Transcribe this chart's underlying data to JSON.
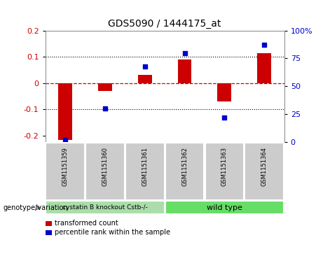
{
  "title": "GDS5090 / 1444175_at",
  "samples": [
    "GSM1151359",
    "GSM1151360",
    "GSM1151361",
    "GSM1151362",
    "GSM1151363",
    "GSM1151364"
  ],
  "bar_values": [
    -0.215,
    -0.03,
    0.03,
    0.09,
    -0.07,
    0.115
  ],
  "dot_values": [
    2,
    30,
    68,
    80,
    22,
    87
  ],
  "bar_color": "#cc0000",
  "dot_color": "#0000cc",
  "ylim_left": [
    -0.225,
    0.2
  ],
  "ylim_right": [
    0,
    100
  ],
  "yticks_left": [
    -0.2,
    -0.1,
    0.0,
    0.1,
    0.2
  ],
  "ytick_labels_left": [
    "-0.2",
    "-0.1",
    "0",
    "0.1",
    "0.2"
  ],
  "yticks_right": [
    0,
    25,
    50,
    75,
    100
  ],
  "ytick_labels_right": [
    "0",
    "25",
    "50",
    "75",
    "100%"
  ],
  "group1_label": "cystatin B knockout Cstb-/-",
  "group2_label": "wild type",
  "group1_color": "#aaddaa",
  "group2_color": "#66dd66",
  "group_row_label": "genotype/variation",
  "legend_bar_label": "transformed count",
  "legend_dot_label": "percentile rank within the sample",
  "background_color": "#ffffff",
  "tick_label_color_left": "#cc0000",
  "tick_label_color_right": "#0000cc",
  "hline_color_red": "#cc0000",
  "sample_box_color": "#cccccc"
}
